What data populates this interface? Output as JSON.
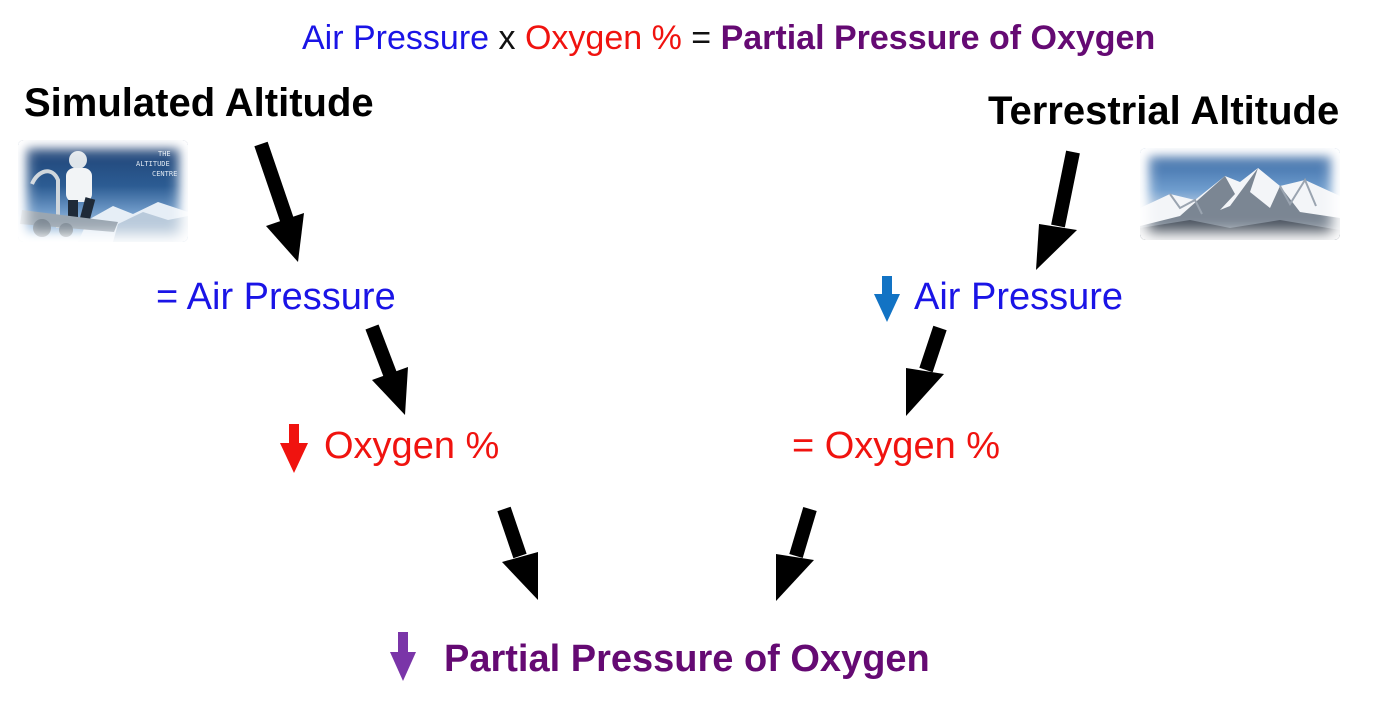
{
  "formula": {
    "air_pressure": "Air Pressure",
    "times": "x",
    "oxygen_percent": "Oxygen %",
    "equals": "=",
    "partial_pressure": "Partial Pressure of Oxygen"
  },
  "left": {
    "heading": "Simulated Altitude",
    "air_pressure": "= Air Pressure",
    "oxygen": "Oxygen %",
    "photo_text": [
      "THE",
      "ALTITUDE",
      "CENTRE"
    ]
  },
  "right": {
    "heading": "Terrestrial Altitude",
    "air_pressure": "Air Pressure",
    "oxygen": "= Oxygen %"
  },
  "result": {
    "label": "Partial Pressure of Oxygen"
  },
  "colors": {
    "air_pressure": "#1a14e6",
    "oxygen": "#f0130f",
    "partial_pressure": "#650a73",
    "down_arrow_air": "#1273c4",
    "down_arrow_oxygen": "#f0130f",
    "down_arrow_result": "#7a35a8",
    "flow_arrow": "#000000"
  }
}
